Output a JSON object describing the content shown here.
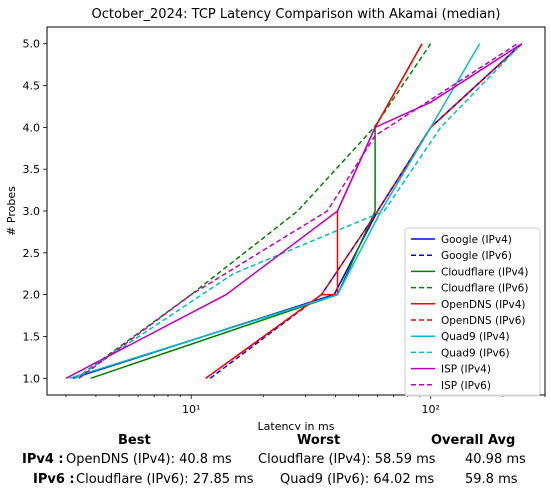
{
  "chart_data": {
    "type": "line",
    "title": "October_2024: TCP Latency Comparison with Akamai (median)",
    "xlabel": "Latency in ms",
    "ylabel": "# Probes",
    "xscale": "log",
    "xlim": [
      2.5,
      300
    ],
    "ylim": [
      0.8,
      5.2
    ],
    "x_ticks": [
      10,
      100
    ],
    "x_tick_labels": [
      "10¹",
      "10²"
    ],
    "y_ticks": [
      1.0,
      1.5,
      2.0,
      2.5,
      3.0,
      3.5,
      4.0,
      4.5,
      5.0
    ],
    "y_tick_labels": [
      "1.0",
      "1.5",
      "2.0",
      "2.5",
      "3.0",
      "3.5",
      "4.0",
      "4.5",
      "5.0"
    ],
    "grid": false,
    "legend_position": "lower-right",
    "series": [
      {
        "name": "Google (IPv4)",
        "color": "#0000ff",
        "style": "solid",
        "points": [
          [
            3.2,
            1
          ],
          [
            39.5,
            2
          ],
          [
            60,
            3
          ],
          [
            100,
            4
          ],
          [
            240,
            5
          ]
        ]
      },
      {
        "name": "Google (IPv6)",
        "color": "#0000ff",
        "style": "dashed",
        "points": [
          [
            12,
            1
          ],
          [
            35,
            2
          ],
          [
            60,
            3
          ],
          [
            100,
            4
          ],
          [
            240,
            5
          ]
        ]
      },
      {
        "name": "Cloudflare (IPv4)",
        "color": "#008000",
        "style": "solid",
        "points": [
          [
            3.8,
            1
          ],
          [
            40.8,
            2
          ],
          [
            58.59,
            3
          ],
          [
            58.59,
            4
          ],
          [
            92,
            5
          ]
        ]
      },
      {
        "name": "Cloudflare (IPv6)",
        "color": "#008000",
        "style": "dashed",
        "points": [
          [
            3.5,
            1.05
          ],
          [
            10,
            2
          ],
          [
            27.85,
            3
          ],
          [
            58,
            4
          ],
          [
            100,
            5
          ]
        ]
      },
      {
        "name": "OpenDNS (IPv4)",
        "color": "#ff0000",
        "style": "solid",
        "points": [
          [
            11.5,
            1
          ],
          [
            35,
            2
          ],
          [
            40.8,
            2
          ],
          [
            40.8,
            3
          ],
          [
            58.59,
            4
          ],
          [
            92,
            5
          ]
        ]
      },
      {
        "name": "OpenDNS (IPv6)",
        "color": "#ff0000",
        "style": "dashed",
        "points": [
          [
            11.5,
            1
          ],
          [
            35,
            2
          ],
          [
            60,
            3
          ],
          [
            100,
            4
          ],
          [
            240,
            5
          ]
        ]
      },
      {
        "name": "Quad9 (IPv4)",
        "color": "#00bfbf",
        "style": "solid",
        "points": [
          [
            3.1,
            1
          ],
          [
            40.8,
            2
          ],
          [
            62,
            3
          ],
          [
            100,
            4
          ],
          [
            160,
            5
          ]
        ]
      },
      {
        "name": "Quad9 (IPv6)",
        "color": "#00bfbf",
        "style": "dashed",
        "points": [
          [
            3.3,
            1
          ],
          [
            15,
            2.25
          ],
          [
            64.02,
            3
          ],
          [
            110,
            4
          ],
          [
            240,
            5
          ]
        ]
      },
      {
        "name": "ISP (IPv4)",
        "color": "#bf00bf",
        "style": "solid",
        "points": [
          [
            3,
            1
          ],
          [
            14,
            2
          ],
          [
            40.8,
            3
          ],
          [
            58.59,
            4
          ],
          [
            100,
            4.3
          ],
          [
            240,
            5
          ]
        ]
      },
      {
        "name": "ISP (IPv6)",
        "color": "#bf00bf",
        "style": "dashed",
        "points": [
          [
            3.4,
            1
          ],
          [
            10,
            2
          ],
          [
            37,
            3
          ],
          [
            58.59,
            3.9
          ],
          [
            230,
            5
          ]
        ]
      }
    ]
  },
  "stats": {
    "headers": {
      "best": "Best",
      "worst": "Worst",
      "avg": "Overall Avg"
    },
    "rows": [
      {
        "label": "IPv4 :",
        "best": "OpenDNS (IPv4): 40.8 ms",
        "worst": "Cloudflare (IPv4): 58.59 ms",
        "avg": "40.98 ms"
      },
      {
        "label": "IPv6 :",
        "best": "Cloudflare (IPv6): 27.85 ms",
        "worst": "Quad9 (IPv6): 64.02 ms",
        "avg": "59.8 ms"
      }
    ]
  }
}
